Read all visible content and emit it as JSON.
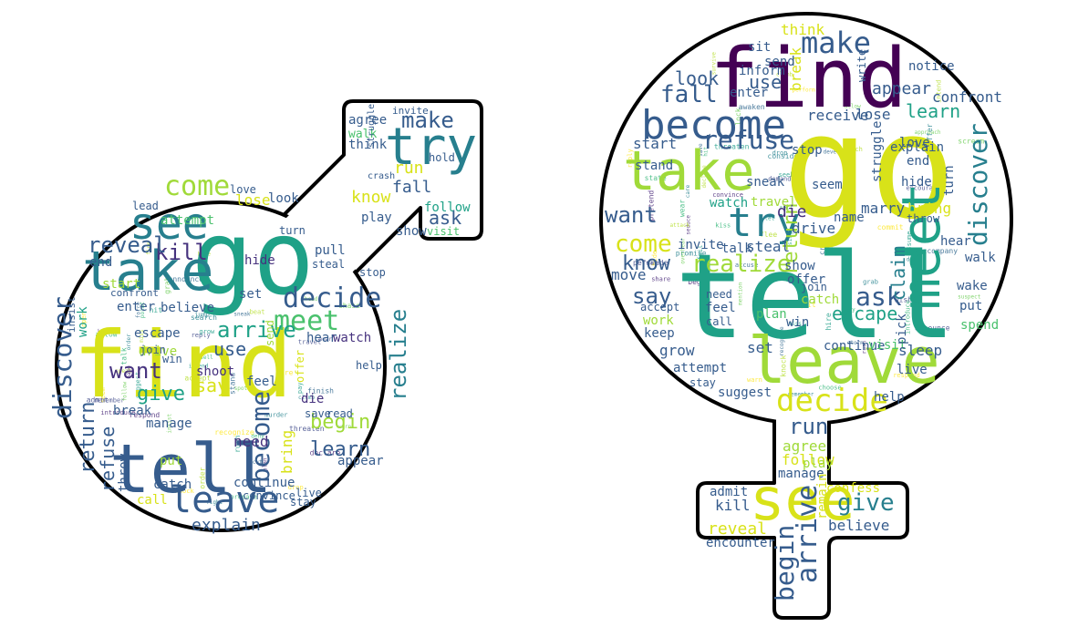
{
  "palette": {
    "outline": "#000000",
    "background": "#ffffff",
    "yellow": "#d8e219",
    "lime": "#a0da39",
    "green": "#4ac16d",
    "teal": "#1fa187",
    "cyan": "#277f8e",
    "blue": "#365c8d",
    "indigo": "#46327e",
    "purple": "#440154"
  },
  "male_cloud": {
    "symbol": "male",
    "words": [
      {
        "text": "find",
        "color": "yellow"
      },
      {
        "text": "go",
        "color": "teal"
      },
      {
        "text": "tell",
        "color": "blue"
      },
      {
        "text": "take",
        "color": "cyan"
      },
      {
        "text": "try",
        "color": "cyan"
      },
      {
        "text": "see",
        "color": "cyan"
      },
      {
        "text": "leave",
        "color": "blue"
      },
      {
        "text": "decide",
        "color": "blue"
      },
      {
        "text": "meet",
        "color": "green"
      },
      {
        "text": "come",
        "color": "lime"
      },
      {
        "text": "make",
        "color": "blue"
      },
      {
        "text": "arrive",
        "color": "teal"
      },
      {
        "text": "discover",
        "color": "blue"
      },
      {
        "text": "kill",
        "color": "indigo"
      },
      {
        "text": "reveal",
        "color": "blue"
      },
      {
        "text": "ask",
        "color": "blue"
      },
      {
        "text": "run",
        "color": "yellow"
      },
      {
        "text": "fall",
        "color": "blue"
      },
      {
        "text": "know",
        "color": "yellow"
      },
      {
        "text": "want",
        "color": "indigo"
      },
      {
        "text": "give",
        "color": "teal"
      },
      {
        "text": "say",
        "color": "yellow"
      },
      {
        "text": "use",
        "color": "blue"
      },
      {
        "text": "become",
        "color": "blue"
      },
      {
        "text": "realize",
        "color": "cyan"
      },
      {
        "text": "begin",
        "color": "lime"
      },
      {
        "text": "learn",
        "color": "blue"
      },
      {
        "text": "return",
        "color": "blue"
      },
      {
        "text": "refuse",
        "color": "blue"
      },
      {
        "text": "explain",
        "color": "blue"
      },
      {
        "text": "agree",
        "color": "blue"
      },
      {
        "text": "walk",
        "color": "green"
      },
      {
        "text": "think",
        "color": "blue"
      },
      {
        "text": "follow",
        "color": "teal"
      },
      {
        "text": "visit",
        "color": "green"
      },
      {
        "text": "hold",
        "color": "blue"
      },
      {
        "text": "show",
        "color": "blue"
      },
      {
        "text": "attempt",
        "color": "green"
      },
      {
        "text": "lose",
        "color": "yellow"
      },
      {
        "text": "look",
        "color": "blue"
      },
      {
        "text": "play",
        "color": "blue"
      },
      {
        "text": "turn",
        "color": "blue"
      },
      {
        "text": "pull",
        "color": "blue"
      },
      {
        "text": "steal",
        "color": "blue"
      },
      {
        "text": "hide",
        "color": "indigo"
      },
      {
        "text": "set",
        "color": "blue"
      },
      {
        "text": "stop",
        "color": "blue"
      },
      {
        "text": "end",
        "color": "blue"
      },
      {
        "text": "start",
        "color": "lime"
      },
      {
        "text": "believe",
        "color": "blue"
      },
      {
        "text": "enter",
        "color": "blue"
      },
      {
        "text": "work",
        "color": "teal"
      },
      {
        "text": "escape",
        "color": "blue"
      },
      {
        "text": "drive",
        "color": "lime"
      },
      {
        "text": "hear",
        "color": "blue"
      },
      {
        "text": "watch",
        "color": "indigo"
      },
      {
        "text": "shoot",
        "color": "indigo"
      },
      {
        "text": "help",
        "color": "blue"
      },
      {
        "text": "feel",
        "color": "blue"
      },
      {
        "text": "die",
        "color": "indigo"
      },
      {
        "text": "offer",
        "color": "yellow"
      },
      {
        "text": "save",
        "color": "blue"
      },
      {
        "text": "read",
        "color": "blue"
      },
      {
        "text": "break",
        "color": "blue"
      },
      {
        "text": "manage",
        "color": "blue"
      },
      {
        "text": "need",
        "color": "indigo"
      },
      {
        "text": "continue",
        "color": "blue"
      },
      {
        "text": "convince",
        "color": "blue"
      },
      {
        "text": "put",
        "color": "lime"
      },
      {
        "text": "call",
        "color": "yellow"
      },
      {
        "text": "catch",
        "color": "blue"
      },
      {
        "text": "throw",
        "color": "blue"
      },
      {
        "text": "appear",
        "color": "blue"
      },
      {
        "text": "bring",
        "color": "yellow"
      },
      {
        "text": "stay",
        "color": "blue"
      },
      {
        "text": "live",
        "color": "blue"
      },
      {
        "text": "send",
        "color": "lime"
      },
      {
        "text": "love",
        "color": "blue"
      },
      {
        "text": "join",
        "color": "blue"
      },
      {
        "text": "win",
        "color": "blue"
      },
      {
        "text": "insist",
        "color": "blue"
      },
      {
        "text": "lead",
        "color": "blue"
      },
      {
        "text": "crash",
        "color": "blue"
      },
      {
        "text": "struggle",
        "color": "blue"
      },
      {
        "text": "invite",
        "color": "blue"
      },
      {
        "text": "confront",
        "color": "blue"
      }
    ]
  },
  "female_cloud": {
    "symbol": "female",
    "words": [
      {
        "text": "go",
        "color": "yellow"
      },
      {
        "text": "tell",
        "color": "teal"
      },
      {
        "text": "find",
        "color": "purple"
      },
      {
        "text": "see",
        "color": "yellow"
      },
      {
        "text": "leave",
        "color": "lime"
      },
      {
        "text": "take",
        "color": "lime"
      },
      {
        "text": "become",
        "color": "blue"
      },
      {
        "text": "try",
        "color": "cyan"
      },
      {
        "text": "meet",
        "color": "teal"
      },
      {
        "text": "decide",
        "color": "yellow"
      },
      {
        "text": "make",
        "color": "blue"
      },
      {
        "text": "refuse",
        "color": "blue"
      },
      {
        "text": "want",
        "color": "blue"
      },
      {
        "text": "come",
        "color": "yellow"
      },
      {
        "text": "realize",
        "color": "lime"
      },
      {
        "text": "discover",
        "color": "cyan"
      },
      {
        "text": "return",
        "color": "lime"
      },
      {
        "text": "fall",
        "color": "blue"
      },
      {
        "text": "ask",
        "color": "blue"
      },
      {
        "text": "say",
        "color": "blue"
      },
      {
        "text": "run",
        "color": "blue"
      },
      {
        "text": "give",
        "color": "cyan"
      },
      {
        "text": "begin",
        "color": "blue"
      },
      {
        "text": "arrive",
        "color": "blue"
      },
      {
        "text": "know",
        "color": "blue"
      },
      {
        "text": "look",
        "color": "blue"
      },
      {
        "text": "use",
        "color": "blue"
      },
      {
        "text": "think",
        "color": "yellow"
      },
      {
        "text": "receive",
        "color": "blue"
      },
      {
        "text": "learn",
        "color": "teal"
      },
      {
        "text": "appear",
        "color": "blue"
      },
      {
        "text": "lose",
        "color": "blue"
      },
      {
        "text": "break",
        "color": "yellow"
      },
      {
        "text": "escape",
        "color": "teal"
      },
      {
        "text": "claim",
        "color": "cyan"
      },
      {
        "text": "marry",
        "color": "blue"
      },
      {
        "text": "struggle",
        "color": "blue"
      },
      {
        "text": "agree",
        "color": "lime"
      },
      {
        "text": "follow",
        "color": "yellow"
      },
      {
        "text": "manage",
        "color": "blue"
      },
      {
        "text": "believe",
        "color": "blue"
      },
      {
        "text": "reveal",
        "color": "yellow"
      },
      {
        "text": "kill",
        "color": "blue"
      },
      {
        "text": "admit",
        "color": "blue"
      },
      {
        "text": "confess",
        "color": "yellow"
      },
      {
        "text": "remain",
        "color": "yellow"
      },
      {
        "text": "encounter",
        "color": "blue"
      },
      {
        "text": "play",
        "color": "lime"
      },
      {
        "text": "start",
        "color": "blue"
      },
      {
        "text": "stand",
        "color": "blue"
      },
      {
        "text": "inform",
        "color": "blue"
      },
      {
        "text": "enter",
        "color": "blue"
      },
      {
        "text": "sit",
        "color": "blue"
      },
      {
        "text": "send",
        "color": "blue"
      },
      {
        "text": "watch",
        "color": "teal"
      },
      {
        "text": "die",
        "color": "indigo"
      },
      {
        "text": "travel",
        "color": "lime"
      },
      {
        "text": "talk",
        "color": "blue"
      },
      {
        "text": "invite",
        "color": "blue"
      },
      {
        "text": "steal",
        "color": "blue"
      },
      {
        "text": "drive",
        "color": "blue"
      },
      {
        "text": "name",
        "color": "blue"
      },
      {
        "text": "show",
        "color": "blue"
      },
      {
        "text": "offer",
        "color": "blue"
      },
      {
        "text": "join",
        "color": "blue"
      },
      {
        "text": "catch",
        "color": "lime"
      },
      {
        "text": "plan",
        "color": "green"
      },
      {
        "text": "win",
        "color": "blue"
      },
      {
        "text": "feel",
        "color": "blue"
      },
      {
        "text": "need",
        "color": "blue"
      },
      {
        "text": "call",
        "color": "blue"
      },
      {
        "text": "keep",
        "color": "blue"
      },
      {
        "text": "work",
        "color": "lime"
      },
      {
        "text": "move",
        "color": "blue"
      },
      {
        "text": "accept",
        "color": "blue"
      },
      {
        "text": "grow",
        "color": "blue"
      },
      {
        "text": "attempt",
        "color": "blue"
      },
      {
        "text": "stay",
        "color": "blue"
      },
      {
        "text": "set",
        "color": "blue"
      },
      {
        "text": "continue",
        "color": "blue"
      },
      {
        "text": "visit",
        "color": "green"
      },
      {
        "text": "sleep",
        "color": "blue"
      },
      {
        "text": "live",
        "color": "blue"
      },
      {
        "text": "help",
        "color": "blue"
      },
      {
        "text": "wake",
        "color": "blue"
      },
      {
        "text": "put",
        "color": "blue"
      },
      {
        "text": "walk",
        "color": "blue"
      },
      {
        "text": "spend",
        "color": "green"
      },
      {
        "text": "pick",
        "color": "blue"
      },
      {
        "text": "turn",
        "color": "blue"
      },
      {
        "text": "hear",
        "color": "blue"
      },
      {
        "text": "explain",
        "color": "blue"
      },
      {
        "text": "end",
        "color": "blue"
      },
      {
        "text": "love",
        "color": "blue"
      },
      {
        "text": "bring",
        "color": "yellow"
      },
      {
        "text": "stop",
        "color": "blue"
      },
      {
        "text": "seem",
        "color": "blue"
      },
      {
        "text": "notice",
        "color": "blue"
      },
      {
        "text": "confront",
        "color": "blue"
      },
      {
        "text": "hide",
        "color": "blue"
      },
      {
        "text": "write",
        "color": "blue"
      },
      {
        "text": "suggest",
        "color": "blue"
      },
      {
        "text": "throw",
        "color": "blue"
      },
      {
        "text": "sneak",
        "color": "blue"
      }
    ]
  }
}
